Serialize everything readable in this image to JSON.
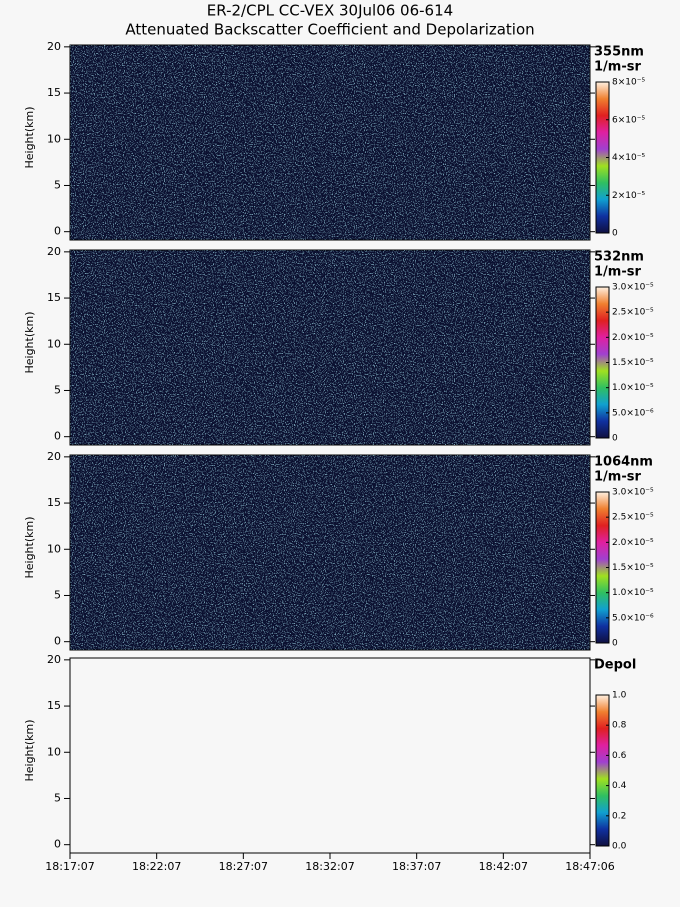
{
  "chart_data": [
    {
      "type": "heatmap",
      "title": "ER-2/CPL CC-VEX 30Jul06 06-614",
      "subtitle": "Attenuated Backscatter Coefficient and Depolarization",
      "ylabel": "Height(km)",
      "ylim": [
        -0.9,
        20.2
      ],
      "yticks": [
        0,
        5,
        10,
        15,
        20
      ],
      "background": "#0b1030",
      "colorbar_title": [
        "355nm",
        "1/m-sr"
      ],
      "clim": [
        0,
        8e-05
      ],
      "colorbar_ticks": [
        0,
        {
          "value": 2e-05,
          "label": "2×10⁻⁵"
        },
        {
          "value": 4e-05,
          "label": "4×10⁻⁵"
        },
        {
          "value": 6e-05,
          "label": "6×10⁻⁵"
        },
        {
          "value": 8e-05,
          "label": "8×10⁻⁵"
        }
      ],
      "colormap": [
        "#101040",
        "#1030a0",
        "#10a0d0",
        "#30c060",
        "#a0e020",
        "#a040d0",
        "#e020a0",
        "#e02020",
        "#f08030",
        "#fff0e0"
      ]
    },
    {
      "type": "heatmap",
      "ylabel": "Height(km)",
      "ylim": [
        -0.9,
        20.2
      ],
      "yticks": [
        0,
        5,
        10,
        15,
        20
      ],
      "background": "#0b1030",
      "colorbar_title": [
        "532nm",
        "1/m-sr"
      ],
      "clim": [
        0,
        3e-05
      ],
      "colorbar_ticks": [
        0,
        {
          "value": 5e-06,
          "label": "5.0×10⁻⁶"
        },
        {
          "value": 1e-05,
          "label": "1.0×10⁻⁵"
        },
        {
          "value": 1.5e-05,
          "label": "1.5×10⁻⁵"
        },
        {
          "value": 2e-05,
          "label": "2.0×10⁻⁵"
        },
        {
          "value": 2.5e-05,
          "label": "2.5×10⁻⁵"
        },
        {
          "value": 3e-05,
          "label": "3.0×10⁻⁵"
        }
      ],
      "colormap": [
        "#101040",
        "#1030a0",
        "#10a0d0",
        "#30c060",
        "#a0e020",
        "#a040d0",
        "#e020a0",
        "#e02020",
        "#f08030",
        "#fff0e0"
      ]
    },
    {
      "type": "heatmap",
      "ylabel": "Height(km)",
      "ylim": [
        -0.9,
        20.2
      ],
      "yticks": [
        0,
        5,
        10,
        15,
        20
      ],
      "background": "#0b1030",
      "colorbar_title": [
        "1064nm",
        "1/m-sr"
      ],
      "clim": [
        0,
        3e-05
      ],
      "colorbar_ticks": [
        0,
        {
          "value": 5e-06,
          "label": "5.0×10⁻⁶"
        },
        {
          "value": 1e-05,
          "label": "1.0×10⁻⁵"
        },
        {
          "value": 1.5e-05,
          "label": "1.5×10⁻⁵"
        },
        {
          "value": 2e-05,
          "label": "2.0×10⁻⁵"
        },
        {
          "value": 2.5e-05,
          "label": "2.5×10⁻⁵"
        },
        {
          "value": 3e-05,
          "label": "3.0×10⁻⁵"
        }
      ],
      "colormap": [
        "#101040",
        "#1030a0",
        "#10a0d0",
        "#30c060",
        "#a0e020",
        "#a040d0",
        "#e020a0",
        "#e02020",
        "#f08030",
        "#fff0e0"
      ]
    },
    {
      "type": "heatmap",
      "ylabel": "Height(km)",
      "ylim": [
        -0.9,
        20.2
      ],
      "yticks": [
        0,
        5,
        10,
        15,
        20
      ],
      "background": "#f7f7f7",
      "colorbar_title": [
        "Depol"
      ],
      "clim": [
        0,
        1
      ],
      "colorbar_ticks": [
        {
          "value": 0,
          "label": "0.0"
        },
        0.2,
        0.4,
        0.6,
        0.8,
        {
          "value": 1,
          "label": "1.0"
        }
      ],
      "colormap": [
        "#101040",
        "#1030a0",
        "#10a0d0",
        "#30c060",
        "#a0e020",
        "#a040d0",
        "#e020a0",
        "#e02020",
        "#f08030",
        "#fff0e0"
      ],
      "xtick_labels": [
        "18:17:07",
        "18:22:07",
        "18:27:07",
        "18:32:07",
        "18:37:07",
        "18:42:07",
        "18:47:06"
      ]
    }
  ]
}
